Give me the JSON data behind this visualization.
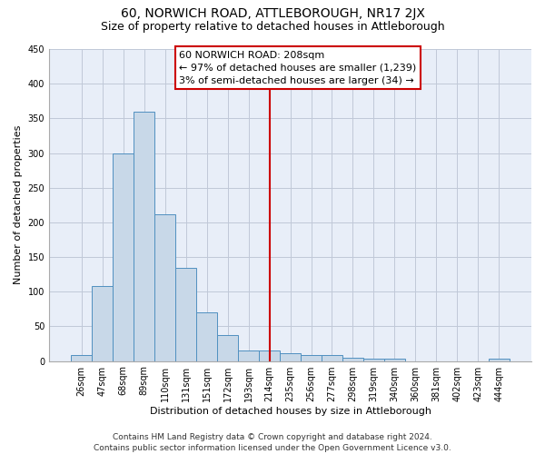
{
  "title": "60, NORWICH ROAD, ATTLEBOROUGH, NR17 2JX",
  "subtitle": "Size of property relative to detached houses in Attleborough",
  "xlabel": "Distribution of detached houses by size in Attleborough",
  "ylabel": "Number of detached properties",
  "bar_labels": [
    "26sqm",
    "47sqm",
    "68sqm",
    "89sqm",
    "110sqm",
    "131sqm",
    "151sqm",
    "172sqm",
    "193sqm",
    "214sqm",
    "235sqm",
    "256sqm",
    "277sqm",
    "298sqm",
    "319sqm",
    "340sqm",
    "360sqm",
    "381sqm",
    "402sqm",
    "423sqm",
    "444sqm"
  ],
  "bar_values": [
    8,
    108,
    300,
    360,
    212,
    135,
    70,
    38,
    15,
    15,
    11,
    8,
    8,
    5,
    3,
    3,
    0,
    0,
    0,
    0,
    4
  ],
  "bar_color": "#c8d8e8",
  "bar_edge_color": "#5090c0",
  "vline_x": 9.0,
  "vline_color": "#cc0000",
  "annotation_line1": "60 NORWICH ROAD: 208sqm",
  "annotation_line2": "← 97% of detached houses are smaller (1,239)",
  "annotation_line3": "3% of semi-detached houses are larger (34) →",
  "annotation_facecolor": "white",
  "annotation_edgecolor": "#cc0000",
  "ylim": [
    0,
    450
  ],
  "yticks": [
    0,
    50,
    100,
    150,
    200,
    250,
    300,
    350,
    400,
    450
  ],
  "grid_color": "#c0c8d8",
  "bg_color": "#e8eef8",
  "footer": "Contains HM Land Registry data © Crown copyright and database right 2024.\nContains public sector information licensed under the Open Government Licence v3.0.",
  "title_fontsize": 10,
  "subtitle_fontsize": 9,
  "ylabel_fontsize": 8,
  "xlabel_fontsize": 8,
  "tick_fontsize": 7,
  "annotation_fontsize": 8,
  "footer_fontsize": 6.5
}
